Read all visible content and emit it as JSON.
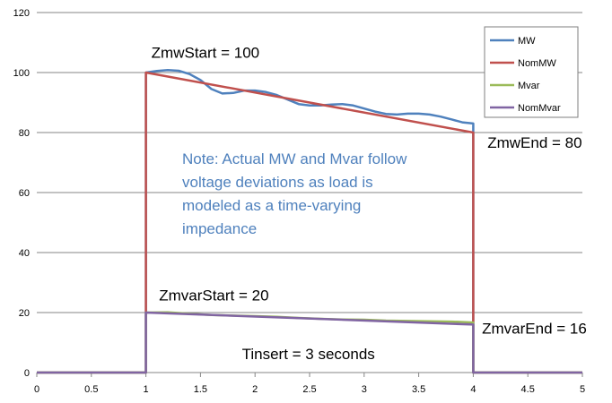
{
  "chart_data": {
    "type": "line",
    "xlim": [
      0,
      5
    ],
    "ylim": [
      0,
      120
    ],
    "x_ticks": [
      "0",
      "0.5",
      "1",
      "1.5",
      "2",
      "2.5",
      "3",
      "3.5",
      "4",
      "4.5",
      "5"
    ],
    "y_ticks": [
      "0",
      "20",
      "40",
      "60",
      "80",
      "100",
      "120"
    ],
    "grid": "horizontal",
    "legend_position": "top-right",
    "series": [
      {
        "name": "MW",
        "color": "#4f81bd",
        "points": [
          [
            0,
            0
          ],
          [
            1,
            0
          ],
          [
            1,
            100
          ],
          [
            1.1,
            100.5
          ],
          [
            1.2,
            100.8
          ],
          [
            1.3,
            100.6
          ],
          [
            1.4,
            99.5
          ],
          [
            1.5,
            97.5
          ],
          [
            1.6,
            94.5
          ],
          [
            1.7,
            93
          ],
          [
            1.8,
            93.2
          ],
          [
            1.9,
            94
          ],
          [
            2,
            94
          ],
          [
            2.1,
            93.5
          ],
          [
            2.2,
            92.5
          ],
          [
            2.3,
            91
          ],
          [
            2.4,
            89.5
          ],
          [
            2.5,
            89
          ],
          [
            2.6,
            89
          ],
          [
            2.7,
            89.3
          ],
          [
            2.8,
            89.5
          ],
          [
            2.9,
            89
          ],
          [
            3,
            88
          ],
          [
            3.1,
            87
          ],
          [
            3.2,
            86.2
          ],
          [
            3.3,
            86
          ],
          [
            3.4,
            86.3
          ],
          [
            3.5,
            86.3
          ],
          [
            3.6,
            86
          ],
          [
            3.7,
            85.3
          ],
          [
            3.8,
            84.4
          ],
          [
            3.9,
            83.4
          ],
          [
            4,
            83
          ],
          [
            4,
            0
          ],
          [
            5,
            0
          ]
        ]
      },
      {
        "name": "NomMW",
        "color": "#c0504d",
        "points": [
          [
            0,
            0
          ],
          [
            1,
            0
          ],
          [
            1,
            100
          ],
          [
            4,
            80
          ],
          [
            4,
            0
          ],
          [
            5,
            0
          ]
        ]
      },
      {
        "name": "Mvar",
        "color": "#9bbb59",
        "points": [
          [
            0,
            0
          ],
          [
            1,
            0
          ],
          [
            1,
            20
          ],
          [
            1.2,
            20.1
          ],
          [
            1.4,
            19.6
          ],
          [
            1.6,
            19.2
          ],
          [
            1.8,
            19
          ],
          [
            2,
            18.8
          ],
          [
            2.2,
            18.6
          ],
          [
            2.4,
            18.2
          ],
          [
            2.6,
            17.9
          ],
          [
            2.8,
            17.7
          ],
          [
            3,
            17.6
          ],
          [
            3.2,
            17.3
          ],
          [
            3.4,
            17.2
          ],
          [
            3.6,
            17.1
          ],
          [
            3.8,
            17
          ],
          [
            4,
            16.7
          ],
          [
            4,
            0
          ],
          [
            5,
            0
          ]
        ]
      },
      {
        "name": "NomMvar",
        "color": "#8064a2",
        "points": [
          [
            0,
            0
          ],
          [
            1,
            0
          ],
          [
            1,
            20
          ],
          [
            4,
            16
          ],
          [
            4,
            0
          ],
          [
            5,
            0
          ]
        ]
      }
    ],
    "annotations": [
      {
        "text": "ZmwStart = 100",
        "x": 1.05,
        "y": 105
      },
      {
        "text": "ZmwEnd = 80",
        "x": 4.13,
        "y": 75
      },
      {
        "text": "ZmvarStart = 20",
        "x": 1.12,
        "y": 24
      },
      {
        "text": "ZmvarEnd = 16",
        "x": 4.08,
        "y": 13
      },
      {
        "text": "Tinsert = 3 seconds",
        "x": 1.88,
        "y": 4.5
      }
    ],
    "note_lines": [
      "Note: Actual MW and Mvar follow",
      "voltage deviations as load is",
      "modeled as a time-varying",
      "impedance"
    ]
  }
}
